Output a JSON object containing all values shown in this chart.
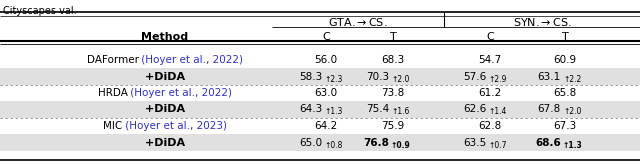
{
  "caption": "Cityscapes val.",
  "gta_header": "GTA.→CS.",
  "syn_header": "SYN.→CS.",
  "sub_headers": [
    "C",
    "T",
    "C",
    "T"
  ],
  "rows": [
    {
      "method": "DAFormer",
      "method_cite": " (Hoyer et al., 2022)",
      "is_dida": false,
      "shaded": false,
      "values": [
        "56.0",
        "68.3",
        "54.7",
        "60.9"
      ],
      "bold": [
        false,
        false,
        false,
        false
      ],
      "subscripts": [
        "",
        "",
        "",
        ""
      ]
    },
    {
      "method": "+DiDA",
      "method_cite": "",
      "is_dida": true,
      "shaded": true,
      "values": [
        "58.3",
        "70.3",
        "57.6",
        "63.1"
      ],
      "bold": [
        false,
        false,
        false,
        false
      ],
      "subscripts": [
        "↑2.3",
        "↑2.0",
        "↑2.9",
        "↑2.2"
      ]
    },
    {
      "method": "HRDA",
      "method_cite": " (Hoyer et al., 2022)",
      "is_dida": false,
      "shaded": false,
      "values": [
        "63.0",
        "73.8",
        "61.2",
        "65.8"
      ],
      "bold": [
        false,
        false,
        false,
        false
      ],
      "subscripts": [
        "",
        "",
        "",
        ""
      ]
    },
    {
      "method": "+DiDA",
      "method_cite": "",
      "is_dida": true,
      "shaded": true,
      "values": [
        "64.3",
        "75.4",
        "62.6",
        "67.8"
      ],
      "bold": [
        false,
        false,
        false,
        false
      ],
      "subscripts": [
        "↑1.3",
        "↑1.6",
        "↑1.4",
        "↑2.0"
      ]
    },
    {
      "method": "MIC",
      "method_cite": " (Hoyer et al., 2023)",
      "is_dida": false,
      "shaded": false,
      "values": [
        "64.2",
        "75.9",
        "62.8",
        "67.3"
      ],
      "bold": [
        false,
        false,
        false,
        false
      ],
      "subscripts": [
        "",
        "",
        "",
        ""
      ]
    },
    {
      "method": "+DiDA",
      "method_cite": "",
      "is_dida": true,
      "shaded": true,
      "values": [
        "65.0",
        "76.8",
        "63.5",
        "68.6"
      ],
      "bold": [
        false,
        true,
        false,
        true
      ],
      "subscripts": [
        "↑0.8",
        "↑0.9",
        "↑0.7",
        "↑1.3"
      ]
    }
  ],
  "cite_color": "#3030cc",
  "shaded_bg": "#e0e0e0",
  "white_bg": "#ffffff",
  "text_color": "#000000"
}
